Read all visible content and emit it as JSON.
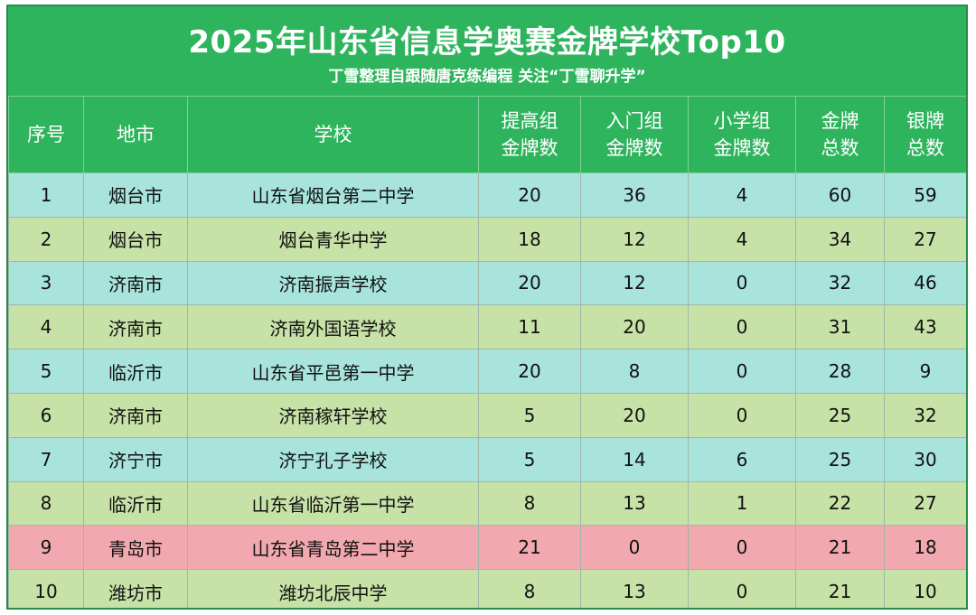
{
  "title": "2025年山东省信息学奥赛金牌学校Top10",
  "subtitle": "丁雪整理自跟随唐克练编程 关注“丁雪聊升学”",
  "watermark_text": "丁雪聊升学",
  "colors": {
    "header_green": "#2fb45e",
    "row_teal": "#a8e4dc",
    "row_green": "#c6e2a6",
    "row_pink": "#f1a8ae"
  },
  "columns": [
    {
      "line1": "序号",
      "line2": ""
    },
    {
      "line1": "地市",
      "line2": ""
    },
    {
      "line1": "学校",
      "line2": ""
    },
    {
      "line1": "提高组",
      "line2": "金牌数"
    },
    {
      "line1": "入门组",
      "line2": "金牌数"
    },
    {
      "line1": "小学组",
      "line2": "金牌数"
    },
    {
      "line1": "金牌",
      "line2": "总数"
    },
    {
      "line1": "银牌",
      "line2": "总数"
    }
  ],
  "rows": [
    {
      "rank": "1",
      "city": "烟台市",
      "school": "山东省烟台第二中学",
      "senior_gold": "20",
      "junior_gold": "36",
      "primary_gold": "4",
      "gold_total": "60",
      "silver_total": "59",
      "color": "teal"
    },
    {
      "rank": "2",
      "city": "烟台市",
      "school": "烟台青华中学",
      "senior_gold": "18",
      "junior_gold": "12",
      "primary_gold": "4",
      "gold_total": "34",
      "silver_total": "27",
      "color": "green"
    },
    {
      "rank": "3",
      "city": "济南市",
      "school": "济南振声学校",
      "senior_gold": "20",
      "junior_gold": "12",
      "primary_gold": "0",
      "gold_total": "32",
      "silver_total": "46",
      "color": "teal"
    },
    {
      "rank": "4",
      "city": "济南市",
      "school": "济南外国语学校",
      "senior_gold": "11",
      "junior_gold": "20",
      "primary_gold": "0",
      "gold_total": "31",
      "silver_total": "43",
      "color": "green"
    },
    {
      "rank": "5",
      "city": "临沂市",
      "school": "山东省平邑第一中学",
      "senior_gold": "20",
      "junior_gold": "8",
      "primary_gold": "0",
      "gold_total": "28",
      "silver_total": "9",
      "color": "teal"
    },
    {
      "rank": "6",
      "city": "济南市",
      "school": "济南稼轩学校",
      "senior_gold": "5",
      "junior_gold": "20",
      "primary_gold": "0",
      "gold_total": "25",
      "silver_total": "32",
      "color": "green"
    },
    {
      "rank": "7",
      "city": "济宁市",
      "school": "济宁孔子学校",
      "senior_gold": "5",
      "junior_gold": "14",
      "primary_gold": "6",
      "gold_total": "25",
      "silver_total": "30",
      "color": "teal"
    },
    {
      "rank": "8",
      "city": "临沂市",
      "school": "山东省临沂第一中学",
      "senior_gold": "8",
      "junior_gold": "13",
      "primary_gold": "1",
      "gold_total": "22",
      "silver_total": "27",
      "color": "green"
    },
    {
      "rank": "9",
      "city": "青岛市",
      "school": "山东省青岛第二中学",
      "senior_gold": "21",
      "junior_gold": "0",
      "primary_gold": "0",
      "gold_total": "21",
      "silver_total": "18",
      "color": "pink"
    },
    {
      "rank": "10",
      "city": "潍坊市",
      "school": "潍坊北辰中学",
      "senior_gold": "8",
      "junior_gold": "13",
      "primary_gold": "0",
      "gold_total": "21",
      "silver_total": "10",
      "color": "green"
    }
  ]
}
